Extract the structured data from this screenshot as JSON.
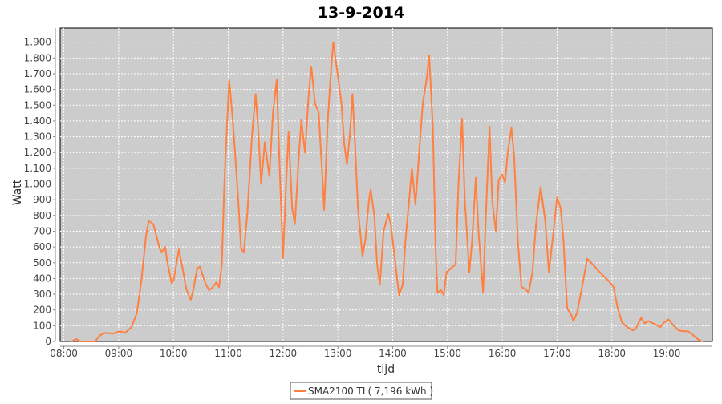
{
  "chart_data": {
    "type": "line",
    "title": "13-9-2014",
    "xlabel": "tijd",
    "ylabel": "Watt",
    "xlim": [
      "07:56",
      "19:50"
    ],
    "ylim": [
      0,
      1990
    ],
    "grid": true,
    "legend_placement": "bottom",
    "colors": {
      "series": "#ff8040",
      "plot_background": "#cccccc",
      "grid": "#ffffff"
    },
    "x_ticks": [
      "08:00",
      "09:00",
      "10:00",
      "11:00",
      "12:00",
      "13:00",
      "14:00",
      "15:00",
      "16:00",
      "17:00",
      "18:00",
      "19:00"
    ],
    "y_ticks": [
      0,
      100,
      200,
      300,
      400,
      500,
      600,
      700,
      800,
      900,
      1000,
      1100,
      1200,
      1300,
      1400,
      1500,
      1600,
      1700,
      1800,
      1900
    ],
    "y_tick_labels": [
      "0",
      "100",
      "200",
      "300",
      "400",
      "500",
      "600",
      "700",
      "800",
      "900",
      "1.000",
      "1.100",
      "1.200",
      "1.300",
      "1.400",
      "1.500",
      "1.600",
      "1.700",
      "1.800",
      "1.900"
    ],
    "series": [
      {
        "name": "SMA2100 TL( 7,196 kWh )",
        "points": [
          [
            "08:08",
            0
          ],
          [
            "08:14",
            15
          ],
          [
            "08:18",
            0
          ],
          [
            "08:34",
            0
          ],
          [
            "08:40",
            40
          ],
          [
            "08:45",
            55
          ],
          [
            "08:54",
            50
          ],
          [
            "09:01",
            65
          ],
          [
            "09:07",
            55
          ],
          [
            "09:14",
            90
          ],
          [
            "09:20",
            180
          ],
          [
            "09:25",
            390
          ],
          [
            "09:30",
            670
          ],
          [
            "09:33",
            765
          ],
          [
            "09:38",
            745
          ],
          [
            "09:45",
            590
          ],
          [
            "09:47",
            565
          ],
          [
            "09:51",
            600
          ],
          [
            "09:53",
            515
          ],
          [
            "09:58",
            370
          ],
          [
            "10:00",
            385
          ],
          [
            "10:06",
            585
          ],
          [
            "10:10",
            465
          ],
          [
            "10:14",
            335
          ],
          [
            "10:19",
            265
          ],
          [
            "10:22",
            335
          ],
          [
            "10:26",
            465
          ],
          [
            "10:29",
            475
          ],
          [
            "10:35",
            370
          ],
          [
            "10:39",
            325
          ],
          [
            "10:43",
            345
          ],
          [
            "10:47",
            375
          ],
          [
            "10:50",
            345
          ],
          [
            "10:53",
            490
          ],
          [
            "10:56",
            1050
          ],
          [
            "11:01",
            1660
          ],
          [
            "11:05",
            1405
          ],
          [
            "11:11",
            895
          ],
          [
            "11:14",
            590
          ],
          [
            "11:17",
            565
          ],
          [
            "11:21",
            820
          ],
          [
            "11:26",
            1305
          ],
          [
            "11:30",
            1570
          ],
          [
            "11:33",
            1330
          ],
          [
            "11:36",
            1000
          ],
          [
            "11:40",
            1265
          ],
          [
            "11:45",
            1050
          ],
          [
            "11:49",
            1455
          ],
          [
            "11:53",
            1660
          ],
          [
            "11:56",
            1150
          ],
          [
            "12:00",
            530
          ],
          [
            "12:03",
            950
          ],
          [
            "12:06",
            1330
          ],
          [
            "12:10",
            845
          ],
          [
            "12:13",
            745
          ],
          [
            "12:17",
            1150
          ],
          [
            "12:20",
            1405
          ],
          [
            "12:24",
            1200
          ],
          [
            "12:28",
            1560
          ],
          [
            "12:31",
            1745
          ],
          [
            "12:35",
            1510
          ],
          [
            "12:39",
            1455
          ],
          [
            "12:42",
            1150
          ],
          [
            "12:45",
            835
          ],
          [
            "12:49",
            1405
          ],
          [
            "12:53",
            1760
          ],
          [
            "12:55",
            1900
          ],
          [
            "13:00",
            1685
          ],
          [
            "13:04",
            1510
          ],
          [
            "13:07",
            1255
          ],
          [
            "13:10",
            1125
          ],
          [
            "13:13",
            1305
          ],
          [
            "13:16",
            1570
          ],
          [
            "13:19",
            1230
          ],
          [
            "13:22",
            845
          ],
          [
            "13:27",
            540
          ],
          [
            "13:30",
            640
          ],
          [
            "13:34",
            895
          ],
          [
            "13:36",
            965
          ],
          [
            "13:40",
            795
          ],
          [
            "13:43",
            490
          ],
          [
            "13:46",
            360
          ],
          [
            "13:50",
            695
          ],
          [
            "13:55",
            810
          ],
          [
            "13:58",
            745
          ],
          [
            "14:03",
            490
          ],
          [
            "14:07",
            295
          ],
          [
            "14:11",
            360
          ],
          [
            "14:14",
            640
          ],
          [
            "14:18",
            895
          ],
          [
            "14:21",
            1100
          ],
          [
            "14:25",
            870
          ],
          [
            "14:29",
            1200
          ],
          [
            "14:33",
            1510
          ],
          [
            "14:37",
            1660
          ],
          [
            "14:40",
            1815
          ],
          [
            "14:44",
            1355
          ],
          [
            "14:47",
            590
          ],
          [
            "14:49",
            310
          ],
          [
            "14:53",
            325
          ],
          [
            "14:56",
            295
          ],
          [
            "14:59",
            440
          ],
          [
            "15:04",
            465
          ],
          [
            "15:09",
            490
          ],
          [
            "15:12",
            1000
          ],
          [
            "15:16",
            1415
          ],
          [
            "15:19",
            895
          ],
          [
            "15:24",
            440
          ],
          [
            "15:27",
            640
          ],
          [
            "15:31",
            1040
          ],
          [
            "15:34",
            695
          ],
          [
            "15:39",
            310
          ],
          [
            "15:42",
            795
          ],
          [
            "15:46",
            1365
          ],
          [
            "15:49",
            895
          ],
          [
            "15:53",
            695
          ],
          [
            "15:56",
            1025
          ],
          [
            "16:00",
            1060
          ],
          [
            "16:03",
            1010
          ],
          [
            "16:06",
            1200
          ],
          [
            "16:10",
            1355
          ],
          [
            "16:13",
            1175
          ],
          [
            "16:17",
            640
          ],
          [
            "16:21",
            345
          ],
          [
            "16:25",
            335
          ],
          [
            "16:29",
            310
          ],
          [
            "16:33",
            440
          ],
          [
            "16:37",
            745
          ],
          [
            "16:42",
            980
          ],
          [
            "16:47",
            770
          ],
          [
            "16:51",
            440
          ],
          [
            "16:56",
            695
          ],
          [
            "17:00",
            915
          ],
          [
            "17:04",
            845
          ],
          [
            "17:07",
            640
          ],
          [
            "17:11",
            210
          ],
          [
            "17:15",
            175
          ],
          [
            "17:18",
            130
          ],
          [
            "17:22",
            185
          ],
          [
            "17:27",
            335
          ],
          [
            "17:33",
            525
          ],
          [
            "17:39",
            490
          ],
          [
            "17:45",
            450
          ],
          [
            "17:51",
            415
          ],
          [
            "17:58",
            375
          ],
          [
            "18:02",
            345
          ],
          [
            "18:06",
            220
          ],
          [
            "18:11",
            120
          ],
          [
            "18:17",
            90
          ],
          [
            "18:23",
            70
          ],
          [
            "18:26",
            80
          ],
          [
            "18:32",
            150
          ],
          [
            "18:36",
            115
          ],
          [
            "18:40",
            130
          ],
          [
            "18:47",
            110
          ],
          [
            "18:53",
            90
          ],
          [
            "18:57",
            120
          ],
          [
            "19:02",
            140
          ],
          [
            "19:07",
            105
          ],
          [
            "19:13",
            70
          ],
          [
            "19:18",
            65
          ],
          [
            "19:23",
            65
          ],
          [
            "19:29",
            40
          ],
          [
            "19:35",
            10
          ],
          [
            "19:39",
            0
          ]
        ]
      }
    ]
  }
}
